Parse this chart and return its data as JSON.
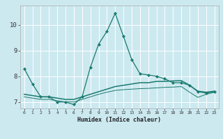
{
  "xlabel": "Humidex (Indice chaleur)",
  "background_color": "#cce9f0",
  "grid_color": "#ffffff",
  "line_color": "#1a7a6e",
  "x": [
    0,
    1,
    2,
    3,
    4,
    5,
    6,
    7,
    8,
    9,
    10,
    11,
    12,
    13,
    14,
    15,
    16,
    17,
    18,
    19,
    20,
    21,
    22,
    23
  ],
  "y_max": [
    8.3,
    7.7,
    7.2,
    7.2,
    7.0,
    7.0,
    6.9,
    7.2,
    8.35,
    9.25,
    9.75,
    10.45,
    9.55,
    8.65,
    8.1,
    8.05,
    8.0,
    7.9,
    7.75,
    7.75,
    7.65,
    7.4,
    7.35,
    7.4
  ],
  "y_mean": [
    7.3,
    7.25,
    7.2,
    7.2,
    7.15,
    7.1,
    7.1,
    7.2,
    7.3,
    7.4,
    7.5,
    7.6,
    7.65,
    7.7,
    7.75,
    7.75,
    7.8,
    7.8,
    7.82,
    7.83,
    7.65,
    7.42,
    7.38,
    7.42
  ],
  "y_min": [
    7.2,
    7.15,
    7.1,
    7.1,
    7.05,
    7.0,
    7.0,
    7.1,
    7.2,
    7.3,
    7.38,
    7.45,
    7.48,
    7.5,
    7.52,
    7.53,
    7.55,
    7.57,
    7.58,
    7.6,
    7.38,
    7.18,
    7.3,
    7.38
  ],
  "ylim": [
    6.75,
    10.75
  ],
  "yticks": [
    7,
    8,
    9,
    10
  ],
  "xticks": [
    0,
    1,
    2,
    3,
    4,
    5,
    6,
    7,
    8,
    9,
    10,
    11,
    12,
    13,
    14,
    15,
    16,
    17,
    18,
    19,
    20,
    21,
    22,
    23
  ]
}
